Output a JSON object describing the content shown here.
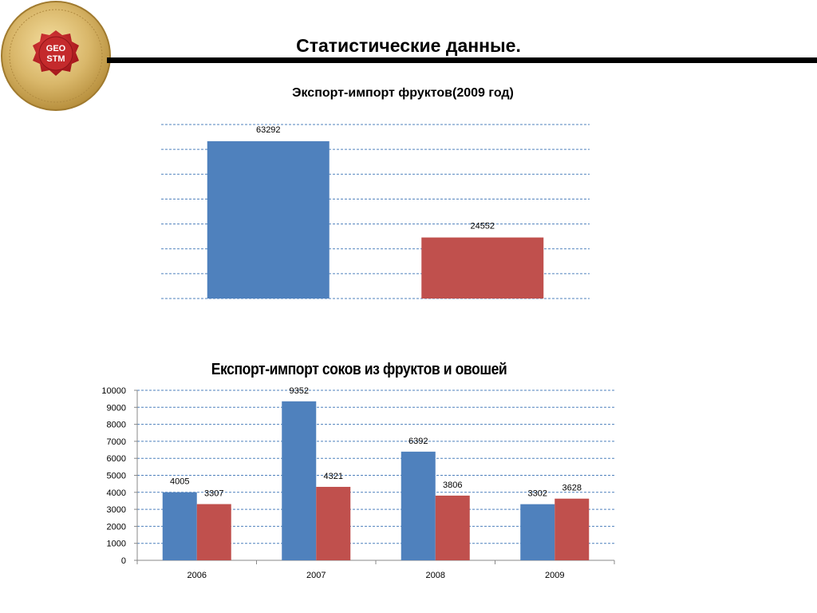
{
  "header": {
    "title": "Статистические данные."
  },
  "logo": {
    "text_line1": "GEO",
    "text_line2": "STM"
  },
  "colors": {
    "blue": "#4F81BD",
    "red": "#C0504D",
    "grid": "#4F81BD"
  },
  "chart_data": [
    {
      "type": "bar",
      "title": "Экспорт-импорт фруктов(2009 год)",
      "categories": [
        "",
        ""
      ],
      "values": [
        63292,
        24552
      ],
      "data_labels": [
        "63292",
        "24552"
      ],
      "ylim": [
        0,
        70000
      ],
      "grid": true,
      "axis_ticks_visible": false
    },
    {
      "type": "bar",
      "title": "Експорт-импорт  соков из  фруктов и овошей",
      "categories": [
        "2006",
        "2007",
        "2008",
        "2009"
      ],
      "series": [
        {
          "values": [
            4005,
            9352,
            6392,
            3302
          ]
        },
        {
          "values": [
            3307,
            4321,
            3806,
            3628
          ]
        }
      ],
      "ylim": [
        0,
        10000
      ],
      "yticks": [
        "0",
        "1000",
        "2000",
        "3000",
        "4000",
        "5000",
        "6000",
        "7000",
        "8000",
        "9000",
        "10000"
      ],
      "grid": true,
      "legend": "none"
    }
  ]
}
